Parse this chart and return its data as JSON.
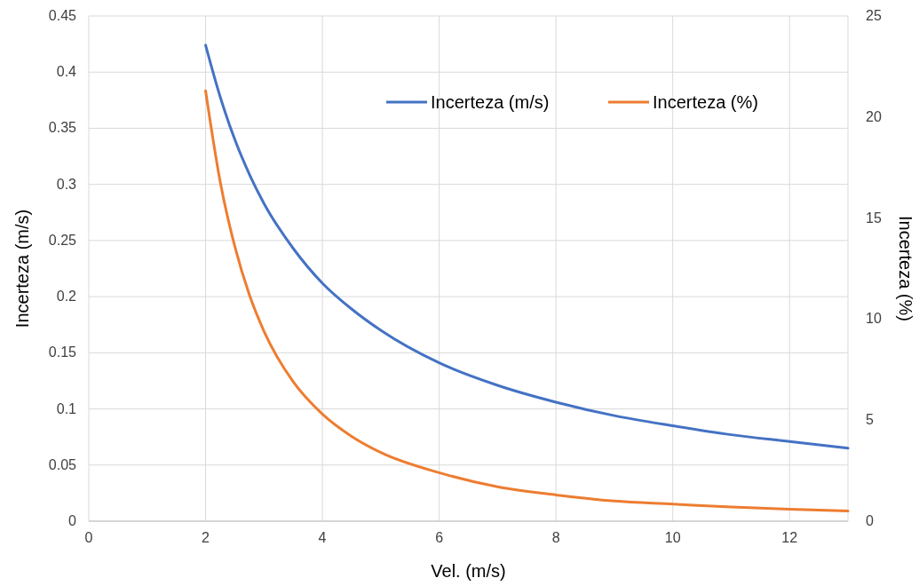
{
  "chart_data": {
    "type": "line",
    "xlabel": "Vel. (m/s)",
    "ylabel": "Incerteza (m/s)",
    "y2label": "Incerteza (%)",
    "xlim": [
      0,
      13
    ],
    "xticks": [
      0,
      2,
      4,
      6,
      8,
      10,
      12
    ],
    "ylim": [
      0,
      0.45
    ],
    "yticks": [
      0,
      0.05,
      0.1,
      0.15,
      0.2,
      0.25,
      0.3,
      0.35,
      0.4,
      0.45
    ],
    "y2lim": [
      0,
      25
    ],
    "y2ticks": [
      0,
      5,
      10,
      15,
      20,
      25
    ],
    "grid": true,
    "legend": "top right",
    "marker": "none",
    "line_style": "solid",
    "series": [
      {
        "name": "Incerteza (m/s)",
        "color": "#4472c4",
        "x": [
          2,
          2.25,
          2.5,
          2.75,
          3,
          3.5,
          4,
          4.5,
          5,
          6,
          7,
          8,
          9,
          10,
          11,
          12,
          13
        ],
        "values": [
          0.424,
          0.378,
          0.34,
          0.309,
          0.283,
          0.243,
          0.212,
          0.189,
          0.17,
          0.141,
          0.121,
          0.106,
          0.094,
          0.085,
          0.077,
          0.071,
          0.065
        ]
      },
      {
        "name": "Incerteza (%)",
        "color": "#ed7d31",
        "axis": "y2",
        "x": [
          2,
          2.25,
          2.5,
          2.75,
          3,
          3.5,
          4,
          4.5,
          5,
          6,
          7,
          8,
          9,
          10,
          11,
          12,
          13
        ],
        "values": [
          21.3,
          16.8,
          13.6,
          11.2,
          9.4,
          6.9,
          5.3,
          4.2,
          3.4,
          2.4,
          1.7,
          1.3,
          1.0,
          0.85,
          0.7,
          0.59,
          0.5
        ]
      }
    ]
  }
}
